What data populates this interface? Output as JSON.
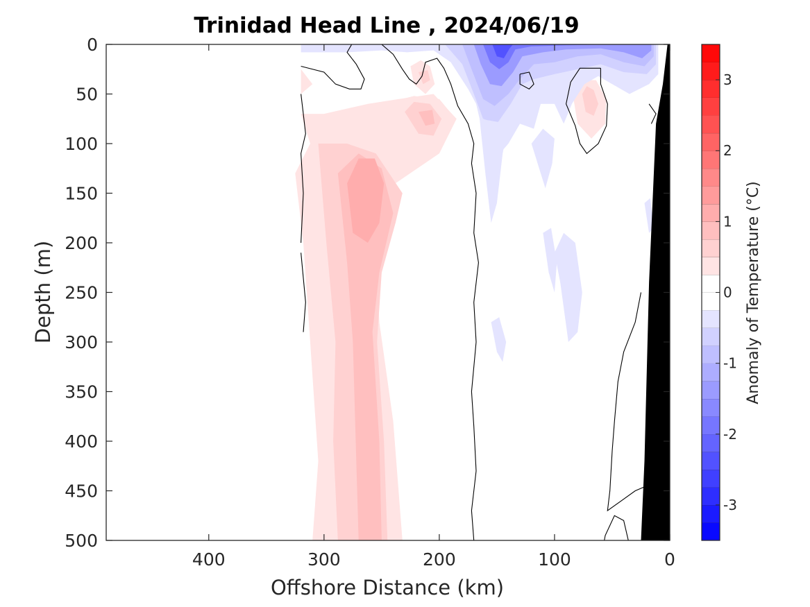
{
  "chart_data": {
    "type": "heatmap",
    "subtype": "filled-contour section",
    "title": "Trinidad Head Line , 2024/06/19",
    "xlabel": "Offshore Distance (km)",
    "ylabel": "Depth (m)",
    "xlim": [
      489,
      0
    ],
    "x_reversed": true,
    "ylim": [
      0,
      500
    ],
    "y_reversed": true,
    "xticks": [
      400,
      300,
      200,
      100,
      0
    ],
    "yticks": [
      0,
      50,
      100,
      150,
      200,
      250,
      300,
      350,
      400,
      450,
      500
    ],
    "data_extent_km": [
      0,
      320
    ],
    "grid": false,
    "colorbar": {
      "label": "Anomaly of Temperature (°C)",
      "range": [
        -3.5,
        3.5
      ],
      "level_step": 0.25,
      "ticks": [
        -3,
        -2,
        -1,
        0,
        1,
        2,
        3
      ],
      "colormap": "blue-white-red",
      "negative_color": "#0000ff",
      "positive_color": "#ff0000",
      "zero_color": "#ffffff"
    },
    "features": [
      {
        "type": "warm-core",
        "center_km": 265,
        "center_depth_m": 150,
        "max_anomaly": 1.25
      },
      {
        "type": "warm-column",
        "center_km": 263,
        "depth_range_m": [
          0,
          500
        ],
        "anomaly": 0.75
      },
      {
        "type": "warm-patch",
        "center_km": 210,
        "center_depth_m": 70,
        "max_anomaly": 1.0
      },
      {
        "type": "warm-patch",
        "center_km": 70,
        "center_depth_m": 55,
        "max_anomaly": 0.75
      },
      {
        "type": "cold-core",
        "center_km": 145,
        "center_depth_m": 10,
        "min_anomaly": -3.0
      },
      {
        "type": "cold-patch",
        "center_km": 20,
        "center_depth_m": 15,
        "min_anomaly": -1.75
      }
    ],
    "zero_contour": true,
    "bathymetry": "shelf near 0–25 km"
  }
}
